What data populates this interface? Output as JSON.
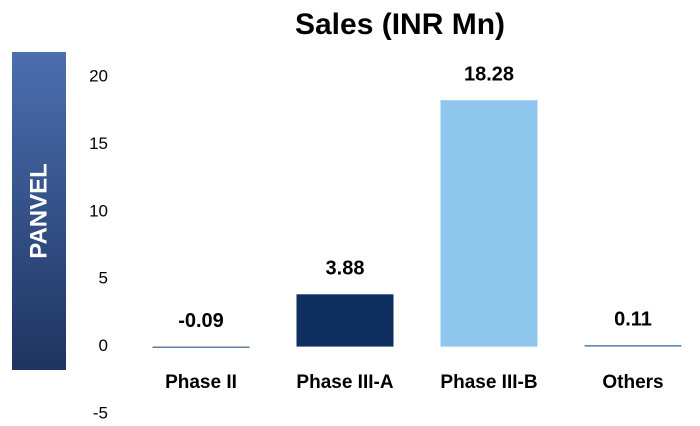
{
  "chart_data": {
    "type": "bar",
    "title": "Sales (INR Mn)",
    "side_label": "PANVEL",
    "categories": [
      "Phase II",
      "Phase III-A",
      "Phase III-B",
      "Others"
    ],
    "values": [
      -0.09,
      3.88,
      18.28,
      0.11
    ],
    "colors": [
      "#3f5f86",
      "#102f61",
      "#8fc6ee",
      "#4f7fa8"
    ],
    "ylim": [
      -5,
      20
    ],
    "yticks": [
      -5,
      0,
      5,
      10,
      15,
      20
    ],
    "grid": false
  }
}
